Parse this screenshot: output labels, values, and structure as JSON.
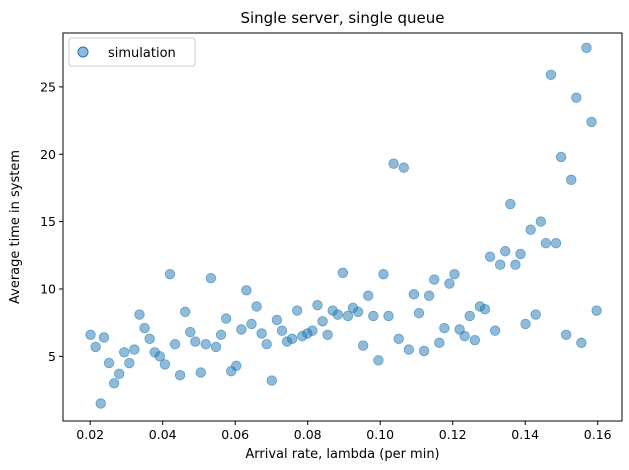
{
  "chart_data": {
    "type": "scatter",
    "title": "Single server, single queue",
    "xlabel": "Arrival rate, lambda (per min)",
    "ylabel": "Average time in system",
    "xlim": [
      0.0125,
      0.1667
    ],
    "ylim": [
      0.2,
      29.0
    ],
    "xticks": [
      0.02,
      0.04,
      0.06,
      0.08,
      0.1,
      0.12,
      0.14,
      0.16
    ],
    "xtick_labels": [
      "0.02",
      "0.04",
      "0.06",
      "0.08",
      "0.10",
      "0.12",
      "0.14",
      "0.16"
    ],
    "yticks": [
      5,
      10,
      15,
      20,
      25
    ],
    "ytick_labels": [
      "5",
      "10",
      "15",
      "20",
      "25"
    ],
    "grid": false,
    "legend_position": "top-left",
    "series": [
      {
        "name": "simulation",
        "color": "#1f77b4",
        "x": [
          0.0201,
          0.0215,
          0.0229,
          0.0238,
          0.0252,
          0.0266,
          0.028,
          0.0294,
          0.0308,
          0.0322,
          0.0336,
          0.035,
          0.0364,
          0.0378,
          0.0392,
          0.0406,
          0.042,
          0.0434,
          0.0448,
          0.0462,
          0.0476,
          0.049,
          0.0505,
          0.0519,
          0.0533,
          0.0547,
          0.0561,
          0.0575,
          0.0589,
          0.0603,
          0.0617,
          0.0631,
          0.0645,
          0.0659,
          0.0673,
          0.0687,
          0.0701,
          0.0715,
          0.0729,
          0.0743,
          0.0757,
          0.0771,
          0.0785,
          0.0799,
          0.0813,
          0.0827,
          0.0841,
          0.0855,
          0.0869,
          0.0883,
          0.0897,
          0.0911,
          0.0925,
          0.0939,
          0.0953,
          0.0967,
          0.0981,
          0.0995,
          0.1009,
          0.1023,
          0.1037,
          0.1051,
          0.1065,
          0.1079,
          0.1093,
          0.1107,
          0.1121,
          0.1135,
          0.1149,
          0.1163,
          0.1177,
          0.1191,
          0.1205,
          0.1219,
          0.1233,
          0.1247,
          0.1261,
          0.1275,
          0.1289,
          0.1303,
          0.1317,
          0.1331,
          0.1345,
          0.1359,
          0.1373,
          0.1387,
          0.1401,
          0.1415,
          0.1429,
          0.1443,
          0.1457,
          0.1471,
          0.1485,
          0.1499,
          0.1513,
          0.1527,
          0.1541,
          0.1555,
          0.1569,
          0.1583,
          0.1597
        ],
        "y": [
          6.6,
          5.7,
          1.5,
          6.4,
          4.5,
          3.0,
          3.7,
          5.3,
          4.5,
          5.5,
          8.1,
          7.1,
          6.3,
          5.3,
          5.0,
          4.4,
          11.1,
          5.9,
          3.6,
          8.3,
          6.8,
          6.1,
          3.8,
          5.9,
          10.8,
          5.7,
          6.6,
          7.8,
          3.9,
          4.3,
          7.0,
          9.9,
          7.4,
          8.7,
          6.7,
          5.9,
          3.2,
          7.7,
          6.9,
          6.1,
          6.3,
          8.4,
          6.5,
          6.7,
          6.9,
          8.8,
          7.6,
          6.6,
          8.4,
          8.1,
          11.2,
          8.0,
          8.6,
          8.3,
          5.8,
          9.5,
          8.0,
          4.7,
          11.1,
          8.0,
          19.3,
          6.3,
          19.0,
          5.5,
          9.6,
          8.2,
          5.4,
          9.5,
          10.7,
          6.0,
          7.1,
          10.4,
          11.1,
          7.0,
          6.5,
          8.0,
          6.2,
          8.7,
          8.5,
          12.4,
          6.9,
          11.8,
          12.8,
          16.3,
          11.8,
          12.6,
          7.4,
          14.4,
          8.1,
          15.0,
          13.4,
          25.9,
          13.4,
          19.8,
          6.6,
          18.1,
          24.2,
          6.0,
          27.9,
          22.4,
          8.4
        ]
      }
    ]
  }
}
